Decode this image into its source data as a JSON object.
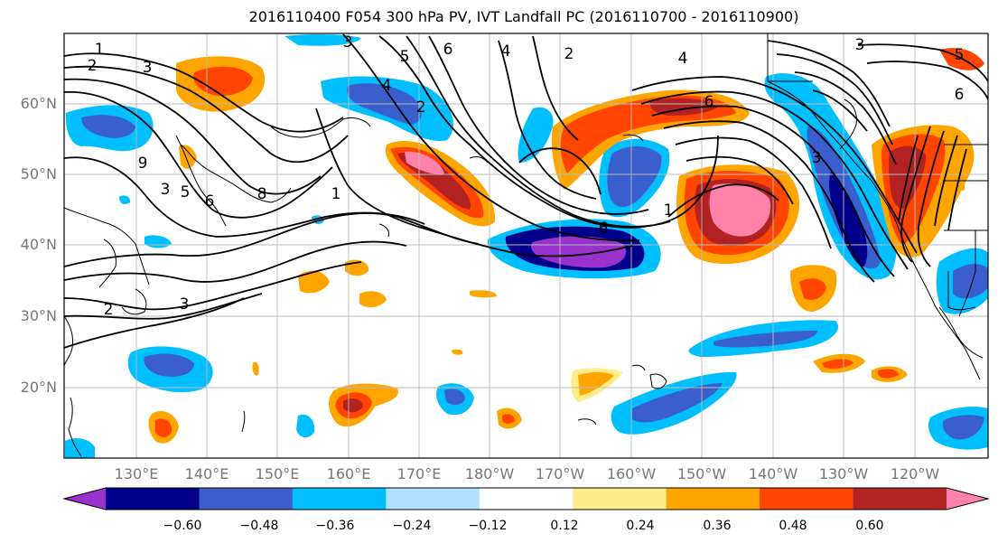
{
  "title": "2016110400 F054 300 hPa PV, IVT Landfall PC (2016110700 - 2016110900)",
  "latitude_labels": [
    "60°N",
    "50°N",
    "40°N",
    "30°N",
    "20°N"
  ],
  "longitude_labels": [
    "130°E",
    "140°E",
    "150°E",
    "160°E",
    "170°E",
    "180°W",
    "170°W",
    "160°W",
    "150°W",
    "140°W",
    "130°W",
    "120°W"
  ],
  "contour_labels": [
    "1",
    "2",
    "3",
    "4",
    "5",
    "6",
    "2",
    "3",
    "4",
    "6",
    "2",
    "3",
    "1",
    "4",
    "5",
    "6",
    "1",
    "6",
    "3",
    "5",
    "6",
    "2",
    "3",
    "3",
    "8",
    "9"
  ],
  "colorbar": {
    "tick_labels": [
      "−0.60",
      "−0.48",
      "−0.36",
      "−0.24",
      "−0.12",
      "0.12",
      "0.24",
      "0.36",
      "0.48",
      "0.60"
    ],
    "colors": [
      "#9932cc",
      "#00008b",
      "#3a5fcd",
      "#00bfff",
      "#b0e2ff",
      "#ffffff",
      "#ffec8b",
      "#ffa500",
      "#ff4500",
      "#b22222",
      "#ff82ab"
    ]
  }
}
